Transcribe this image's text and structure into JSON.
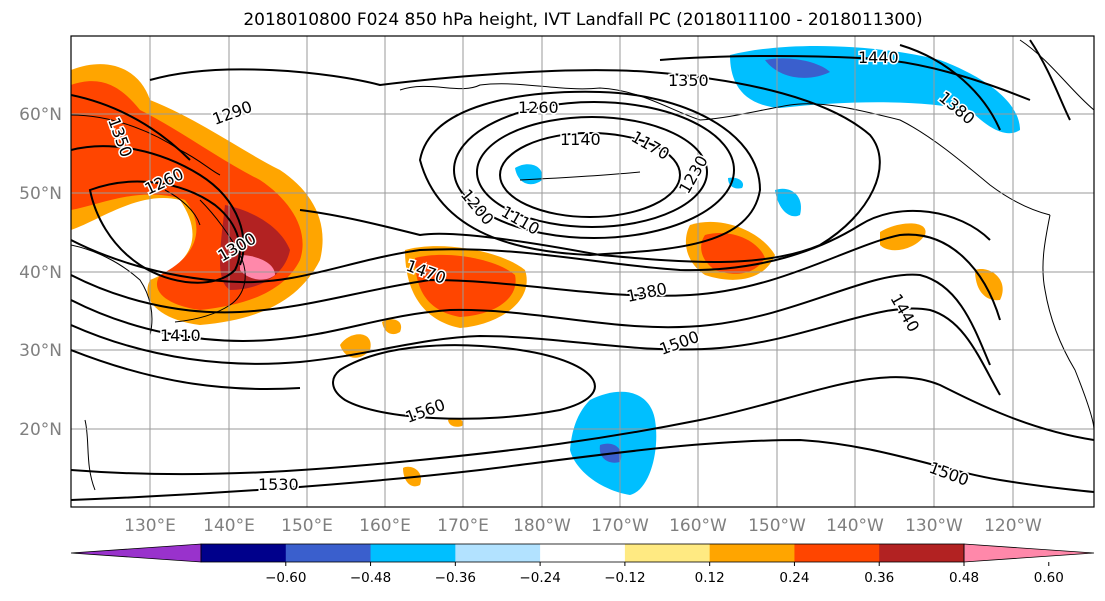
{
  "title": "2018010800 F024 850 hPa height, IVT Landfall PC (2018011100 - 2018011300)",
  "lat_labels": [
    "60°N",
    "50°N",
    "40°N",
    "30°N",
    "20°N"
  ],
  "lon_labels": [
    "130°E",
    "140°E",
    "150°E",
    "160°E",
    "170°E",
    "180°W",
    "170°W",
    "160°W",
    "150°W",
    "140°W",
    "130°W",
    "120°W"
  ],
  "contour_labels": [
    "1440",
    "1350",
    "1380",
    "1350",
    "1290",
    "1260",
    "1140",
    "1170",
    "1230",
    "1260",
    "1200",
    "1110",
    "1300",
    "1470",
    "1380",
    "1440",
    "1410",
    "1500",
    "1560",
    "1530",
    "1500"
  ],
  "colorbar": {
    "ticks": [
      "−0.60",
      "−0.48",
      "−0.36",
      "−0.24",
      "−0.12",
      "0.12",
      "0.24",
      "0.36",
      "0.48",
      "0.60"
    ],
    "colors": [
      "#9932cc",
      "#00008b",
      "#3a5fcd",
      "#00bfff",
      "#b2e2ff",
      "#ffffff",
      "#ffea82",
      "#ffa500",
      "#ff4500",
      "#b22222",
      "#ff88aa"
    ]
  }
}
